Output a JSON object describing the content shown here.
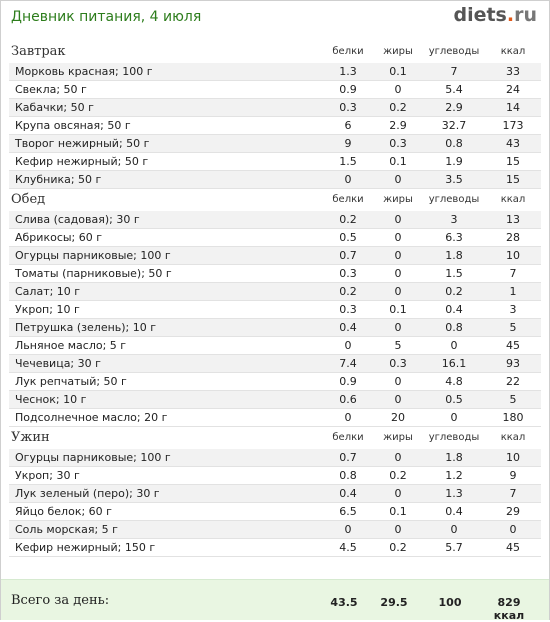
{
  "header": {
    "title": "Дневник питания, 4 июля",
    "logo_main": "diets",
    "logo_dot": ".",
    "logo_tld": "ru"
  },
  "columns": {
    "protein": "белки",
    "fat": "жиры",
    "carbs": "углеводы",
    "kcal": "ккал"
  },
  "meals": [
    {
      "name": "Завтрак",
      "items": [
        {
          "name": "Морковь красная; 100 г",
          "b": "1.3",
          "f": "0.1",
          "c": "7",
          "k": "33"
        },
        {
          "name": "Свекла; 50 г",
          "b": "0.9",
          "f": "0",
          "c": "5.4",
          "k": "24"
        },
        {
          "name": "Кабачки; 50 г",
          "b": "0.3",
          "f": "0.2",
          "c": "2.9",
          "k": "14"
        },
        {
          "name": "Крупа овсяная; 50 г",
          "b": "6",
          "f": "2.9",
          "c": "32.7",
          "k": "173"
        },
        {
          "name": "Творог нежирный; 50 г",
          "b": "9",
          "f": "0.3",
          "c": "0.8",
          "k": "43"
        },
        {
          "name": "Кефир нежирный; 50 г",
          "b": "1.5",
          "f": "0.1",
          "c": "1.9",
          "k": "15"
        },
        {
          "name": "Клубника; 50 г",
          "b": "0",
          "f": "0",
          "c": "3.5",
          "k": "15"
        }
      ]
    },
    {
      "name": "Обед",
      "items": [
        {
          "name": "Слива (садовая); 30 г",
          "b": "0.2",
          "f": "0",
          "c": "3",
          "k": "13"
        },
        {
          "name": "Абрикосы; 60 г",
          "b": "0.5",
          "f": "0",
          "c": "6.3",
          "k": "28"
        },
        {
          "name": "Огурцы парниковые; 100 г",
          "b": "0.7",
          "f": "0",
          "c": "1.8",
          "k": "10"
        },
        {
          "name": "Томаты (парниковые); 50 г",
          "b": "0.3",
          "f": "0",
          "c": "1.5",
          "k": "7"
        },
        {
          "name": "Салат; 10 г",
          "b": "0.2",
          "f": "0",
          "c": "0.2",
          "k": "1"
        },
        {
          "name": "Укроп; 10 г",
          "b": "0.3",
          "f": "0.1",
          "c": "0.4",
          "k": "3"
        },
        {
          "name": "Петрушка (зелень); 10 г",
          "b": "0.4",
          "f": "0",
          "c": "0.8",
          "k": "5"
        },
        {
          "name": "Льняное масло; 5 г",
          "b": "0",
          "f": "5",
          "c": "0",
          "k": "45"
        },
        {
          "name": "Чечевица; 30 г",
          "b": "7.4",
          "f": "0.3",
          "c": "16.1",
          "k": "93"
        },
        {
          "name": "Лук репчатый; 50 г",
          "b": "0.9",
          "f": "0",
          "c": "4.8",
          "k": "22"
        },
        {
          "name": "Чеснок; 10 г",
          "b": "0.6",
          "f": "0",
          "c": "0.5",
          "k": "5"
        },
        {
          "name": "Подсолнечное масло; 20 г",
          "b": "0",
          "f": "20",
          "c": "0",
          "k": "180"
        }
      ]
    },
    {
      "name": "Ужин",
      "items": [
        {
          "name": "Огурцы парниковые; 100 г",
          "b": "0.7",
          "f": "0",
          "c": "1.8",
          "k": "10"
        },
        {
          "name": "Укроп; 30 г",
          "b": "0.8",
          "f": "0.2",
          "c": "1.2",
          "k": "9"
        },
        {
          "name": "Лук зеленый (перо); 30 г",
          "b": "0.4",
          "f": "0",
          "c": "1.3",
          "k": "7"
        },
        {
          "name": "Яйцо белок; 60 г",
          "b": "6.5",
          "f": "0.1",
          "c": "0.4",
          "k": "29"
        },
        {
          "name": "Соль морская; 5 г",
          "b": "0",
          "f": "0",
          "c": "0",
          "k": "0"
        },
        {
          "name": "Кефир нежирный; 150 г",
          "b": "4.5",
          "f": "0.2",
          "c": "5.7",
          "k": "45"
        }
      ]
    }
  ],
  "totals": {
    "label": "Всего за день:",
    "protein": "43.5",
    "fat": "29.5",
    "carbs": "100",
    "kcal": "829 ккал"
  }
}
